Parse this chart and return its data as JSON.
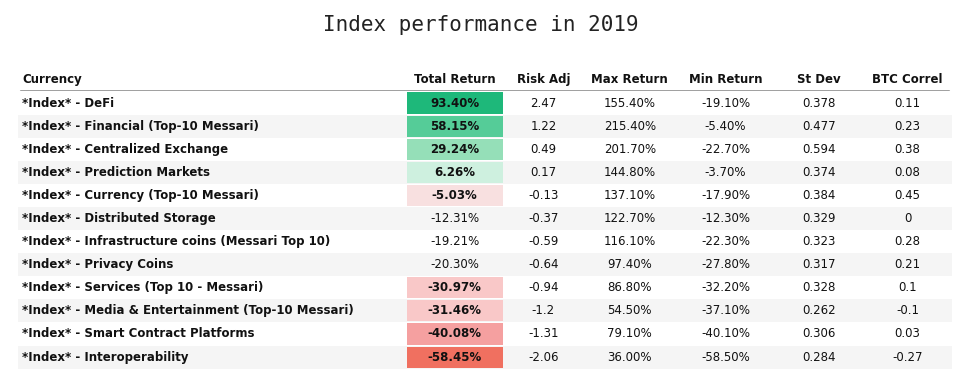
{
  "title": "Index performance in 2019",
  "columns": [
    "Currency",
    "Total Return",
    "Risk Adj",
    "Max Return",
    "Min Return",
    "St Dev",
    "BTC Correl"
  ],
  "rows": [
    {
      "currency": "*Index* - DeFi",
      "total_return": "93.40%",
      "risk_adj": "2.47",
      "max_return": "155.40%",
      "min_return": "-19.10%",
      "st_dev": "0.378",
      "btc_correl": "0.11",
      "cell_color": "#1eb87a"
    },
    {
      "currency": "*Index* - Financial (Top-10 Messari)",
      "total_return": "58.15%",
      "risk_adj": "1.22",
      "max_return": "215.40%",
      "min_return": "-5.40%",
      "st_dev": "0.477",
      "btc_correl": "0.23",
      "cell_color": "#55cc98"
    },
    {
      "currency": "*Index* - Centralized Exchange",
      "total_return": "29.24%",
      "risk_adj": "0.49",
      "max_return": "201.70%",
      "min_return": "-22.70%",
      "st_dev": "0.594",
      "btc_correl": "0.38",
      "cell_color": "#95dfb8"
    },
    {
      "currency": "*Index* - Prediction Markets",
      "total_return": "6.26%",
      "risk_adj": "0.17",
      "max_return": "144.80%",
      "min_return": "-3.70%",
      "st_dev": "0.374",
      "btc_correl": "0.08",
      "cell_color": "#cef0df"
    },
    {
      "currency": "*Index* - Currency (Top-10 Messari)",
      "total_return": "-5.03%",
      "risk_adj": "-0.13",
      "max_return": "137.10%",
      "min_return": "-17.90%",
      "st_dev": "0.384",
      "btc_correl": "0.45",
      "cell_color": "#f8e0e0"
    },
    {
      "currency": "*Index* - Distributed Storage",
      "total_return": "-12.31%",
      "risk_adj": "-0.37",
      "max_return": "122.70%",
      "min_return": "-12.30%",
      "st_dev": "0.329",
      "btc_correl": "0",
      "cell_color": "none"
    },
    {
      "currency": "*Index* - Infrastructure coins (Messari Top 10)",
      "total_return": "-19.21%",
      "risk_adj": "-0.59",
      "max_return": "116.10%",
      "min_return": "-22.30%",
      "st_dev": "0.323",
      "btc_correl": "0.28",
      "cell_color": "none"
    },
    {
      "currency": "*Index* - Privacy Coins",
      "total_return": "-20.30%",
      "risk_adj": "-0.64",
      "max_return": "97.40%",
      "min_return": "-27.80%",
      "st_dev": "0.317",
      "btc_correl": "0.21",
      "cell_color": "none"
    },
    {
      "currency": "*Index* - Services (Top 10 - Messari)",
      "total_return": "-30.97%",
      "risk_adj": "-0.94",
      "max_return": "86.80%",
      "min_return": "-32.20%",
      "st_dev": "0.328",
      "btc_correl": "0.1",
      "cell_color": "#f9c8c8"
    },
    {
      "currency": "*Index* - Media & Entertainment (Top-10 Messari)",
      "total_return": "-31.46%",
      "risk_adj": "-1.2",
      "max_return": "54.50%",
      "min_return": "-37.10%",
      "st_dev": "0.262",
      "btc_correl": "-0.1",
      "cell_color": "#f9c8c8"
    },
    {
      "currency": "*Index* - Smart Contract Platforms",
      "total_return": "-40.08%",
      "risk_adj": "-1.31",
      "max_return": "79.10%",
      "min_return": "-40.10%",
      "st_dev": "0.306",
      "btc_correl": "0.03",
      "cell_color": "#f5a0a0"
    },
    {
      "currency": "*Index* - Interoperability",
      "total_return": "-58.45%",
      "risk_adj": "-2.06",
      "max_return": "36.00%",
      "min_return": "-58.50%",
      "st_dev": "0.284",
      "btc_correl": "-0.27",
      "cell_color": "#f07060"
    }
  ],
  "title_fontsize": 15,
  "header_fontsize": 8.5,
  "cell_fontsize": 8.5,
  "fig_width": 9.62,
  "fig_height": 3.8,
  "dpi": 100
}
